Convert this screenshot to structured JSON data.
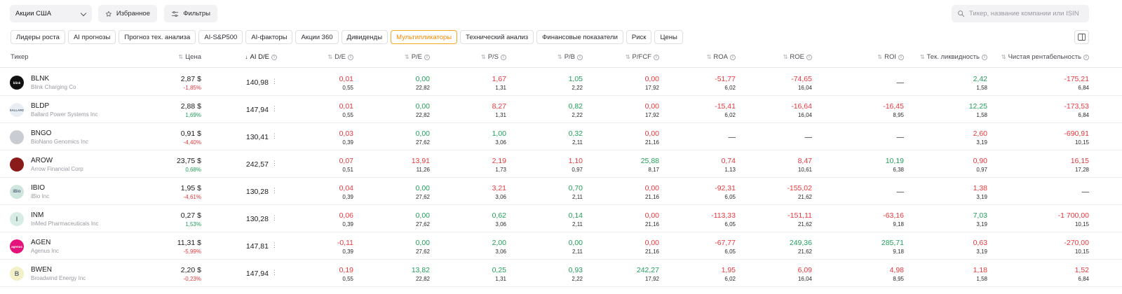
{
  "toolbar": {
    "market": "Акции США",
    "favorites": "Избранное",
    "filters": "Фильтры",
    "search_placeholder": "Тикер, название компании или ISIN"
  },
  "tabs": [
    {
      "label": "Лидеры роста",
      "active": false
    },
    {
      "label": "AI прогнозы",
      "active": false
    },
    {
      "label": "Прогноз тех. анализа",
      "active": false
    },
    {
      "label": "AI-S&P500",
      "active": false
    },
    {
      "label": "AI-факторы",
      "active": false
    },
    {
      "label": "Акции 360",
      "active": false
    },
    {
      "label": "Дивиденды",
      "active": false
    },
    {
      "label": "Мультипликаторы",
      "active": true
    },
    {
      "label": "Технический анализ",
      "active": false
    },
    {
      "label": "Финансовые показатели",
      "active": false
    },
    {
      "label": "Риск",
      "active": false
    },
    {
      "label": "Цены",
      "active": false
    }
  ],
  "columns": {
    "ticker": "Тикер",
    "price": "Цена",
    "aide": "AI D/E",
    "de": "D/E",
    "pe": "P/E",
    "ps": "P/S",
    "pb": "P/B",
    "pfcf": "P/FCF",
    "roa": "ROA",
    "roe": "ROE",
    "roi": "ROI",
    "liq": "Тек. ликвидность",
    "margin": "Чистая рентабельность"
  },
  "colors": {
    "positive": "#22a05a",
    "negative": "#e8383d",
    "accent": "#f08a00"
  },
  "rows": [
    {
      "ticker": "BLNK",
      "company": "Blink Charging Co",
      "logo_text": "blink",
      "logo_color": "#111111",
      "price": "2,87 $",
      "change": "-1,85%",
      "change_dir": "neg",
      "aide": "140,98",
      "de": {
        "v": "0,01",
        "s": "0,55",
        "c": "neg"
      },
      "pe": {
        "v": "0,00",
        "s": "22,82",
        "c": "pos"
      },
      "ps": {
        "v": "1,67",
        "s": "1,31",
        "c": "neg"
      },
      "pb": {
        "v": "1,05",
        "s": "2,22",
        "c": "pos"
      },
      "pfcf": {
        "v": "0,00",
        "s": "17,92",
        "c": "neg"
      },
      "roa": {
        "v": "-51,77",
        "s": "6,02",
        "c": "neg"
      },
      "roe": {
        "v": "-74,65",
        "s": "16,04",
        "c": "neg"
      },
      "roi": {
        "v": "—",
        "s": "",
        "c": "neu"
      },
      "liq": {
        "v": "2,42",
        "s": "1,58",
        "c": "pos"
      },
      "margin": {
        "v": "-175,21",
        "s": "6,84",
        "c": "neg"
      }
    },
    {
      "ticker": "BLDP",
      "company": "Ballard Power Systems Inc",
      "logo_text": "BALLARD",
      "logo_color": "#e9eef5",
      "price": "2,88 $",
      "change": "1,69%",
      "change_dir": "pos",
      "aide": "147,94",
      "de": {
        "v": "0,01",
        "s": "0,55",
        "c": "neg"
      },
      "pe": {
        "v": "0,00",
        "s": "22,82",
        "c": "pos"
      },
      "ps": {
        "v": "8,27",
        "s": "1,31",
        "c": "neg"
      },
      "pb": {
        "v": "0,82",
        "s": "2,22",
        "c": "pos"
      },
      "pfcf": {
        "v": "0,00",
        "s": "17,92",
        "c": "neg"
      },
      "roa": {
        "v": "-15,41",
        "s": "6,02",
        "c": "neg"
      },
      "roe": {
        "v": "-16,64",
        "s": "16,04",
        "c": "neg"
      },
      "roi": {
        "v": "-16,45",
        "s": "8,95",
        "c": "neg"
      },
      "liq": {
        "v": "12,25",
        "s": "1,58",
        "c": "pos"
      },
      "margin": {
        "v": "-173,53",
        "s": "6,84",
        "c": "neg"
      }
    },
    {
      "ticker": "BNGO",
      "company": "BioNano Genomics Inc",
      "logo_text": "",
      "logo_color": "#c9cdd3",
      "price": "0,91 $",
      "change": "-4,40%",
      "change_dir": "neg",
      "aide": "130,41",
      "de": {
        "v": "0,03",
        "s": "0,39",
        "c": "neg"
      },
      "pe": {
        "v": "0,00",
        "s": "27,62",
        "c": "pos"
      },
      "ps": {
        "v": "1,00",
        "s": "3,06",
        "c": "pos"
      },
      "pb": {
        "v": "0,32",
        "s": "2,11",
        "c": "pos"
      },
      "pfcf": {
        "v": "0,00",
        "s": "21,16",
        "c": "neg"
      },
      "roa": {
        "v": "—",
        "s": "",
        "c": "neu"
      },
      "roe": {
        "v": "—",
        "s": "",
        "c": "neu"
      },
      "roi": {
        "v": "—",
        "s": "",
        "c": "neu"
      },
      "liq": {
        "v": "2,60",
        "s": "3,19",
        "c": "neg"
      },
      "margin": {
        "v": "-690,91",
        "s": "10,15",
        "c": "neg"
      }
    },
    {
      "ticker": "AROW",
      "company": "Arrow Financial Corp",
      "logo_text": "",
      "logo_color": "#8b1a1a",
      "price": "23,75 $",
      "change": "0,68%",
      "change_dir": "pos",
      "aide": "242,57",
      "de": {
        "v": "0,07",
        "s": "0,51",
        "c": "neg"
      },
      "pe": {
        "v": "13,91",
        "s": "11,26",
        "c": "neg"
      },
      "ps": {
        "v": "2,19",
        "s": "1,73",
        "c": "neg"
      },
      "pb": {
        "v": "1,10",
        "s": "0,97",
        "c": "neg"
      },
      "pfcf": {
        "v": "25,88",
        "s": "8,17",
        "c": "pos"
      },
      "roa": {
        "v": "0,74",
        "s": "1,13",
        "c": "neg"
      },
      "roe": {
        "v": "8,47",
        "s": "10,61",
        "c": "neg"
      },
      "roi": {
        "v": "10,19",
        "s": "6,38",
        "c": "pos"
      },
      "liq": {
        "v": "0,90",
        "s": "0,97",
        "c": "neg"
      },
      "margin": {
        "v": "16,15",
        "s": "17,28",
        "c": "neg"
      }
    },
    {
      "ticker": "IBIO",
      "company": "iBio Inc",
      "logo_text": "iBio",
      "logo_color": "#cfe6df",
      "price": "1,95 $",
      "change": "-4,61%",
      "change_dir": "neg",
      "aide": "130,28",
      "de": {
        "v": "0,04",
        "s": "0,39",
        "c": "neg"
      },
      "pe": {
        "v": "0,00",
        "s": "27,62",
        "c": "pos"
      },
      "ps": {
        "v": "3,21",
        "s": "3,06",
        "c": "neg"
      },
      "pb": {
        "v": "0,70",
        "s": "2,11",
        "c": "pos"
      },
      "pfcf": {
        "v": "0,00",
        "s": "21,16",
        "c": "neg"
      },
      "roa": {
        "v": "-92,31",
        "s": "6,05",
        "c": "neg"
      },
      "roe": {
        "v": "-155,02",
        "s": "21,62",
        "c": "neg"
      },
      "roi": {
        "v": "—",
        "s": "",
        "c": "neu"
      },
      "liq": {
        "v": "1,38",
        "s": "3,19",
        "c": "neg"
      },
      "margin": {
        "v": "—",
        "s": "",
        "c": "neu"
      }
    },
    {
      "ticker": "INM",
      "company": "InMed Pharmaceuticals Inc",
      "logo_text": "I",
      "logo_color": "#d6ece4",
      "price": "0,27 $",
      "change": "1,53%",
      "change_dir": "pos",
      "aide": "130,28",
      "de": {
        "v": "0,06",
        "s": "0,39",
        "c": "neg"
      },
      "pe": {
        "v": "0,00",
        "s": "27,62",
        "c": "pos"
      },
      "ps": {
        "v": "0,62",
        "s": "3,06",
        "c": "pos"
      },
      "pb": {
        "v": "0,14",
        "s": "2,11",
        "c": "pos"
      },
      "pfcf": {
        "v": "0,00",
        "s": "21,16",
        "c": "neg"
      },
      "roa": {
        "v": "-113,33",
        "s": "6,05",
        "c": "neg"
      },
      "roe": {
        "v": "-151,11",
        "s": "21,62",
        "c": "neg"
      },
      "roi": {
        "v": "-63,16",
        "s": "9,18",
        "c": "neg"
      },
      "liq": {
        "v": "7,03",
        "s": "3,19",
        "c": "pos"
      },
      "margin": {
        "v": "-1 700,00",
        "s": "10,15",
        "c": "neg"
      }
    },
    {
      "ticker": "AGEN",
      "company": "Agenus Inc",
      "logo_text": "agenus",
      "logo_color": "#e4127b",
      "price": "11,31 $",
      "change": "-5,99%",
      "change_dir": "neg",
      "aide": "147,81",
      "de": {
        "v": "-0,11",
        "s": "0,39",
        "c": "neg"
      },
      "pe": {
        "v": "0,00",
        "s": "27,62",
        "c": "pos"
      },
      "ps": {
        "v": "2,00",
        "s": "3,06",
        "c": "pos"
      },
      "pb": {
        "v": "0,00",
        "s": "2,11",
        "c": "pos"
      },
      "pfcf": {
        "v": "0,00",
        "s": "21,16",
        "c": "neg"
      },
      "roa": {
        "v": "-67,77",
        "s": "6,05",
        "c": "neg"
      },
      "roe": {
        "v": "249,36",
        "s": "21,62",
        "c": "pos"
      },
      "roi": {
        "v": "285,71",
        "s": "9,18",
        "c": "pos"
      },
      "liq": {
        "v": "0,63",
        "s": "3,19",
        "c": "neg"
      },
      "margin": {
        "v": "-270,00",
        "s": "10,15",
        "c": "neg"
      }
    },
    {
      "ticker": "BWEN",
      "company": "Broadwind Energy Inc",
      "logo_text": "B",
      "logo_color": "#f3f0c8",
      "price": "2,20 $",
      "change": "-0,23%",
      "change_dir": "neg",
      "aide": "147,94",
      "de": {
        "v": "0,19",
        "s": "0,55",
        "c": "neg"
      },
      "pe": {
        "v": "13,82",
        "s": "22,82",
        "c": "pos"
      },
      "ps": {
        "v": "0,25",
        "s": "1,31",
        "c": "pos"
      },
      "pb": {
        "v": "0,93",
        "s": "2,22",
        "c": "pos"
      },
      "pfcf": {
        "v": "242,27",
        "s": "17,92",
        "c": "pos"
      },
      "roa": {
        "v": "1,95",
        "s": "6,02",
        "c": "neg"
      },
      "roe": {
        "v": "6,09",
        "s": "16,04",
        "c": "neg"
      },
      "roi": {
        "v": "4,98",
        "s": "8,95",
        "c": "neg"
      },
      "liq": {
        "v": "1,18",
        "s": "1,58",
        "c": "neg"
      },
      "margin": {
        "v": "1,52",
        "s": "6,84",
        "c": "neg"
      }
    }
  ]
}
